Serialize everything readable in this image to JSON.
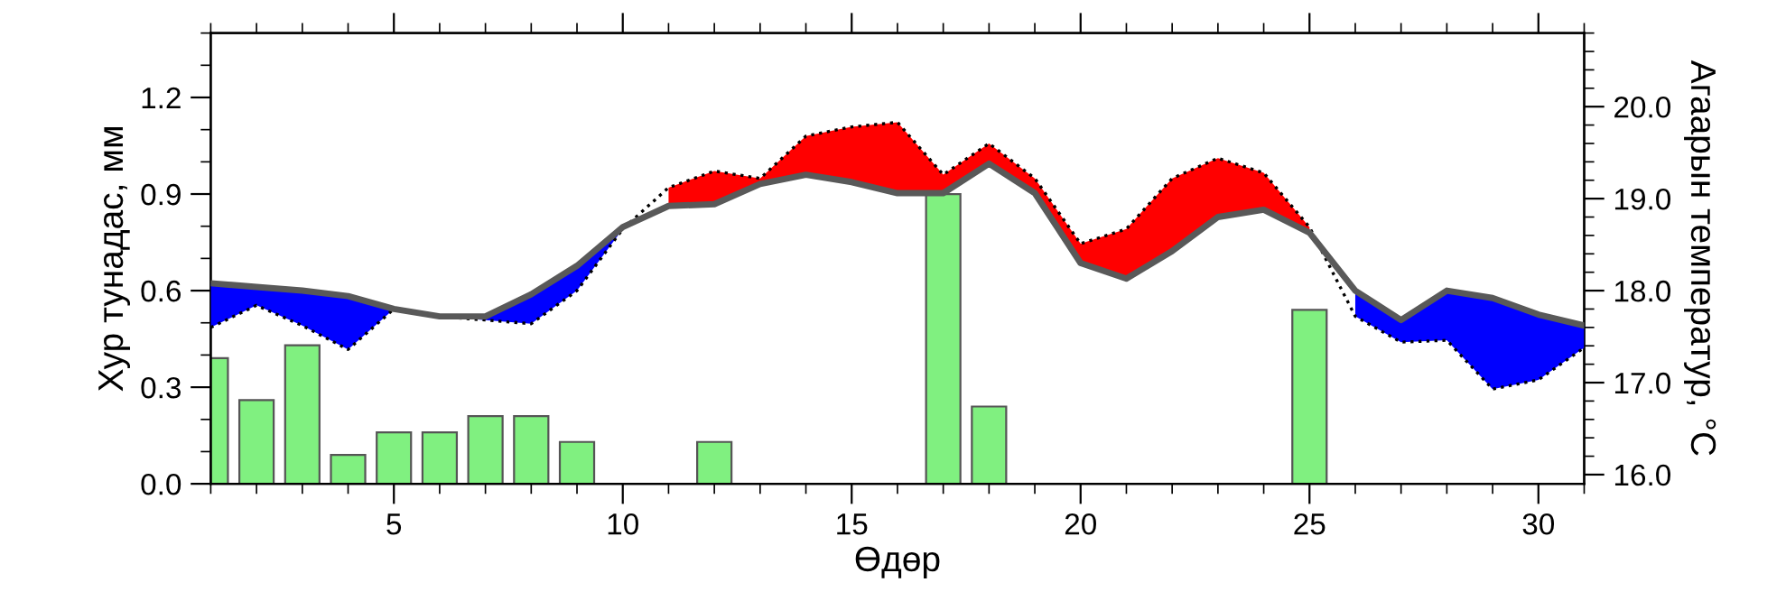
{
  "chart_data": {
    "type": "bar",
    "xlabel": "Өдөр",
    "ylabel": "Хур тунадас, мм",
    "y2label": "Агаарын температур, °C",
    "xlim": [
      1,
      31
    ],
    "xticks": [
      5,
      10,
      15,
      20,
      25,
      30
    ],
    "ylim": [
      0,
      1.4
    ],
    "yticks": [
      {
        "value": 0,
        "label": "0.0"
      },
      {
        "value": 0.3,
        "label": "0.3"
      },
      {
        "value": 0.6,
        "label": "0.6"
      },
      {
        "value": 0.9,
        "label": "0.9"
      },
      {
        "value": 1.2,
        "label": "1.2"
      }
    ],
    "y2lim": [
      15.9,
      20.8
    ],
    "y2ticks": [
      {
        "value": 16,
        "label": "16.0"
      },
      {
        "value": 17,
        "label": "17.0"
      },
      {
        "value": 18,
        "label": "18.0"
      },
      {
        "value": 19,
        "label": "19.0"
      },
      {
        "value": 20,
        "label": "20.0"
      }
    ],
    "grid": false,
    "legend": false,
    "series": [
      {
        "axis": "y",
        "color": "#80f080",
        "x": [
          1,
          2,
          3,
          4,
          5,
          6,
          7,
          8,
          9,
          12,
          17,
          18,
          25
        ],
        "values": [
          0.39,
          0.26,
          0.43,
          0.09,
          0.16,
          0.16,
          0.21,
          0.21,
          0.13,
          0.13,
          0.9,
          0.24,
          0.54
        ]
      },
      {
        "type": "line",
        "axis": "y2",
        "color": "#595959",
        "line_style": "solid",
        "x": [
          1,
          2,
          3,
          4,
          5,
          6,
          7,
          8,
          9,
          10,
          11,
          12,
          13,
          14,
          15,
          16,
          17,
          18,
          19,
          20,
          21,
          22,
          23,
          24,
          25,
          26,
          27,
          28,
          29,
          30,
          31
        ],
        "values": [
          18.08,
          18.04,
          18.0,
          17.94,
          17.8,
          17.72,
          17.72,
          17.96,
          18.27,
          18.69,
          18.92,
          18.94,
          19.16,
          19.26,
          19.18,
          19.06,
          19.06,
          19.38,
          19.06,
          18.3,
          18.13,
          18.43,
          18.8,
          18.88,
          18.63,
          18.0,
          17.68,
          18.0,
          17.92,
          17.74,
          17.62
        ],
        "lower": [
          17.6,
          17.84,
          17.62,
          17.36,
          17.8,
          17.72,
          17.68,
          17.64,
          18.0,
          18.67,
          null,
          null,
          null,
          null,
          null,
          null,
          null,
          null,
          null,
          null,
          null,
          null,
          null,
          null,
          null,
          17.72,
          17.44,
          17.46,
          16.93,
          17.03,
          17.38
        ],
        "upper": [
          18.08,
          18.04,
          18.0,
          17.94,
          17.8,
          17.72,
          17.72,
          17.96,
          18.27,
          18.69,
          null,
          null,
          null,
          null,
          null,
          null,
          null,
          null,
          null,
          null,
          null,
          null,
          null,
          null,
          null,
          18.0,
          17.68,
          18.0,
          17.92,
          17.74,
          17.62
        ],
        "colors": [
          "#0000ff",
          "#0000ff",
          "#0000ff",
          "#0000ff",
          "#0000ff",
          "#0000ff",
          "#0000ff",
          "#0000ff",
          "#0000ff",
          "#0000ff",
          "#0000ff",
          "#0000ff",
          "#0000ff",
          "#0000ff",
          "#0000ff",
          "#0000ff",
          "#0000ff",
          "#0000ff",
          "#0000ff",
          "#0000ff",
          "#0000ff",
          "#0000ff",
          "#0000ff",
          "#0000ff",
          "#0000ff",
          "#0000ff",
          "#0000ff",
          "#0000ff",
          "#0000ff",
          "#0000ff",
          "#0000ff"
        ]
      },
      {
        "type": "line",
        "axis": "y2",
        "color": "#000000",
        "line_style": "dotted",
        "x": [
          1,
          2,
          3,
          4,
          5,
          6,
          7,
          8,
          9,
          10,
          11,
          12,
          13,
          14,
          15,
          16,
          17,
          18,
          19,
          20,
          21,
          22,
          23,
          24,
          25,
          26,
          27,
          28,
          29,
          30,
          31
        ],
        "values": [
          17.6,
          17.84,
          17.62,
          17.36,
          17.8,
          17.72,
          17.68,
          17.64,
          18.0,
          18.67,
          19.12,
          19.3,
          19.22,
          19.68,
          19.78,
          19.83,
          19.26,
          19.6,
          19.22,
          18.51,
          18.67,
          19.22,
          19.44,
          19.28,
          18.69,
          17.72,
          17.44,
          17.46,
          16.93,
          17.03,
          17.38
        ],
        "lower": [
          null,
          null,
          null,
          null,
          null,
          null,
          null,
          null,
          null,
          null,
          18.92,
          18.94,
          19.16,
          19.26,
          19.18,
          19.06,
          19.06,
          19.38,
          19.06,
          18.3,
          18.13,
          18.43,
          18.8,
          18.88,
          18.63,
          null,
          null,
          null,
          null,
          null,
          null
        ],
        "upper": [
          null,
          null,
          null,
          null,
          null,
          null,
          null,
          null,
          null,
          null,
          19.12,
          19.3,
          19.22,
          19.68,
          19.78,
          19.83,
          19.26,
          19.6,
          19.22,
          18.51,
          18.67,
          19.22,
          19.44,
          19.28,
          18.69,
          null,
          null,
          null,
          null,
          null,
          null
        ],
        "colors": [
          "#ff0000",
          "#ff0000",
          "#ff0000",
          "#ff0000",
          "#ff0000",
          "#ff0000",
          "#ff0000",
          "#ff0000",
          "#ff0000",
          "#ff0000",
          "#ff0000",
          "#ff0000",
          "#ff0000",
          "#ff0000",
          "#ff0000",
          "#ff0000",
          "#ff0000",
          "#ff0000",
          "#ff0000",
          "#ff0000",
          "#ff0000",
          "#ff0000",
          "#ff0000",
          "#ff0000",
          "#ff0000",
          "#ff0000",
          "#ff0000",
          "#ff0000",
          "#ff0000",
          "#ff0000",
          "#ff0000"
        ]
      }
    ]
  }
}
